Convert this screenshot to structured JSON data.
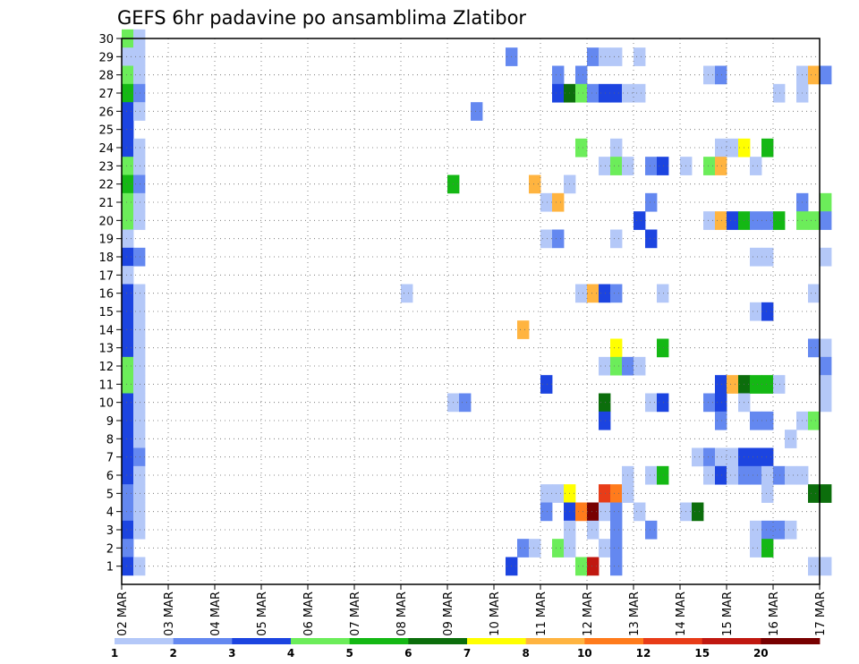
{
  "chart_data": {
    "type": "heatmap",
    "title": "GEFS 6hr padavine po ansamblima Zlatibor",
    "x_tick_labels": [
      "02 MAR",
      "03 MAR",
      "04 MAR",
      "05 MAR",
      "06 MAR",
      "07 MAR",
      "08 MAR",
      "09 MAR",
      "10 MAR",
      "11 MAR",
      "12 MAR",
      "13 MAR",
      "14 MAR",
      "15 MAR",
      "16 MAR",
      "17 MAR"
    ],
    "x_range_days": [
      0,
      15
    ],
    "x_step_hours": 6,
    "y_tick_labels": [
      "1",
      "2",
      "3",
      "4",
      "5",
      "6",
      "7",
      "8",
      "9",
      "10",
      "11",
      "12",
      "13",
      "14",
      "15",
      "16",
      "17",
      "18",
      "19",
      "20",
      "21",
      "22",
      "23",
      "24",
      "25",
      "26",
      "27",
      "28",
      "29",
      "30"
    ],
    "y_range": [
      0,
      30
    ],
    "grid": "dotted",
    "color_scale": {
      "labels": [
        "1",
        "2",
        "3",
        "4",
        "5",
        "6",
        "7",
        "8",
        "10",
        "12",
        "15",
        "20"
      ],
      "colors": [
        "#b4c8f8",
        "#6488f0",
        "#1c44e0",
        "#6ced5a",
        "#14b814",
        "#0c6e0c",
        "#ffff00",
        "#ffb440",
        "#ff7b1c",
        "#e83c18",
        "#c01810",
        "#780000"
      ]
    },
    "cells": [
      [
        0,
        30,
        4
      ],
      [
        0,
        29,
        1
      ],
      [
        0,
        28,
        4
      ],
      [
        0,
        27,
        5
      ],
      [
        0,
        26,
        3
      ],
      [
        0,
        25,
        3
      ],
      [
        0,
        24,
        3
      ],
      [
        0,
        23,
        4
      ],
      [
        0,
        22,
        5
      ],
      [
        0,
        21,
        4
      ],
      [
        0,
        20,
        4
      ],
      [
        0,
        19,
        1
      ],
      [
        0,
        18,
        3
      ],
      [
        0,
        17,
        1
      ],
      [
        0,
        16,
        3
      ],
      [
        0,
        15,
        3
      ],
      [
        0,
        14,
        3
      ],
      [
        0,
        13,
        3
      ],
      [
        0,
        12,
        4
      ],
      [
        0,
        11,
        4
      ],
      [
        0,
        10,
        3
      ],
      [
        0,
        9,
        3
      ],
      [
        0,
        8,
        3
      ],
      [
        0,
        7,
        3
      ],
      [
        0,
        6,
        3
      ],
      [
        0,
        5,
        2
      ],
      [
        0,
        4,
        2
      ],
      [
        0,
        3,
        3
      ],
      [
        0,
        2,
        2
      ],
      [
        0,
        1,
        3
      ],
      [
        1,
        30,
        1
      ],
      [
        1,
        29,
        1
      ],
      [
        1,
        28,
        1
      ],
      [
        1,
        27,
        2
      ],
      [
        1,
        26,
        1
      ],
      [
        1,
        24,
        1
      ],
      [
        1,
        23,
        1
      ],
      [
        1,
        22,
        2
      ],
      [
        1,
        21,
        1
      ],
      [
        1,
        20,
        1
      ],
      [
        1,
        18,
        2
      ],
      [
        1,
        16,
        1
      ],
      [
        1,
        15,
        1
      ],
      [
        1,
        14,
        1
      ],
      [
        1,
        13,
        1
      ],
      [
        1,
        12,
        1
      ],
      [
        1,
        11,
        1
      ],
      [
        1,
        10,
        1
      ],
      [
        1,
        9,
        1
      ],
      [
        1,
        8,
        1
      ],
      [
        1,
        7,
        2
      ],
      [
        1,
        6,
        1
      ],
      [
        1,
        5,
        1
      ],
      [
        1,
        4,
        1
      ],
      [
        1,
        3,
        1
      ],
      [
        1,
        1,
        1
      ],
      [
        24,
        16,
        1
      ],
      [
        28,
        22,
        5
      ],
      [
        28,
        10,
        1
      ],
      [
        29,
        10,
        2
      ],
      [
        30,
        26,
        2
      ],
      [
        33,
        29,
        2
      ],
      [
        33,
        1,
        3
      ],
      [
        34,
        2,
        2
      ],
      [
        34,
        14,
        8
      ],
      [
        35,
        22,
        8
      ],
      [
        35,
        2,
        1
      ],
      [
        36,
        21,
        1
      ],
      [
        36,
        19,
        1
      ],
      [
        36,
        11,
        3
      ],
      [
        36,
        5,
        1
      ],
      [
        36,
        4,
        2
      ],
      [
        37,
        28,
        2
      ],
      [
        37,
        27,
        3
      ],
      [
        37,
        21,
        8
      ],
      [
        37,
        19,
        2
      ],
      [
        37,
        5,
        1
      ],
      [
        37,
        2,
        4
      ],
      [
        38,
        27,
        6
      ],
      [
        38,
        22,
        1
      ],
      [
        38,
        5,
        7
      ],
      [
        38,
        4,
        3
      ],
      [
        38,
        3,
        1
      ],
      [
        38,
        2,
        1
      ],
      [
        39,
        28,
        2
      ],
      [
        39,
        27,
        4
      ],
      [
        39,
        24,
        4
      ],
      [
        39,
        16,
        1
      ],
      [
        39,
        4,
        9
      ],
      [
        39,
        1,
        4
      ],
      [
        40,
        29,
        2
      ],
      [
        40,
        27,
        2
      ],
      [
        40,
        16,
        8
      ],
      [
        40,
        4,
        12
      ],
      [
        40,
        3,
        1
      ],
      [
        40,
        1,
        11
      ],
      [
        41,
        29,
        1
      ],
      [
        41,
        27,
        3
      ],
      [
        41,
        23,
        1
      ],
      [
        41,
        16,
        3
      ],
      [
        41,
        12,
        1
      ],
      [
        41,
        10,
        6
      ],
      [
        41,
        9,
        3
      ],
      [
        41,
        5,
        10
      ],
      [
        41,
        4,
        1
      ],
      [
        41,
        2,
        1
      ],
      [
        42,
        29,
        1
      ],
      [
        42,
        27,
        3
      ],
      [
        42,
        24,
        1
      ],
      [
        42,
        23,
        4
      ],
      [
        42,
        19,
        1
      ],
      [
        42,
        16,
        2
      ],
      [
        42,
        13,
        7
      ],
      [
        42,
        12,
        4
      ],
      [
        42,
        5,
        9
      ],
      [
        42,
        4,
        2
      ],
      [
        42,
        3,
        2
      ],
      [
        42,
        2,
        2
      ],
      [
        42,
        1,
        2
      ],
      [
        43,
        27,
        1
      ],
      [
        43,
        23,
        1
      ],
      [
        43,
        12,
        2
      ],
      [
        43,
        6,
        1
      ],
      [
        43,
        5,
        1
      ],
      [
        44,
        29,
        1
      ],
      [
        44,
        27,
        1
      ],
      [
        44,
        20,
        3
      ],
      [
        44,
        12,
        1
      ],
      [
        44,
        4,
        1
      ],
      [
        45,
        23,
        2
      ],
      [
        45,
        21,
        2
      ],
      [
        45,
        19,
        3
      ],
      [
        45,
        10,
        1
      ],
      [
        45,
        6,
        1
      ],
      [
        45,
        3,
        2
      ],
      [
        46,
        23,
        3
      ],
      [
        46,
        16,
        1
      ],
      [
        46,
        13,
        5
      ],
      [
        46,
        10,
        3
      ],
      [
        46,
        6,
        5
      ],
      [
        48,
        23,
        1
      ],
      [
        48,
        4,
        1
      ],
      [
        49,
        7,
        1
      ],
      [
        49,
        4,
        6
      ],
      [
        50,
        28,
        1
      ],
      [
        50,
        23,
        4
      ],
      [
        50,
        20,
        1
      ],
      [
        50,
        10,
        2
      ],
      [
        50,
        7,
        2
      ],
      [
        50,
        6,
        1
      ],
      [
        51,
        28,
        2
      ],
      [
        51,
        24,
        1
      ],
      [
        51,
        23,
        8
      ],
      [
        51,
        20,
        8
      ],
      [
        51,
        11,
        3
      ],
      [
        51,
        10,
        3
      ],
      [
        51,
        9,
        2
      ],
      [
        51,
        7,
        1
      ],
      [
        51,
        6,
        3
      ],
      [
        52,
        24,
        1
      ],
      [
        52,
        20,
        3
      ],
      [
        52,
        11,
        8
      ],
      [
        52,
        7,
        1
      ],
      [
        52,
        6,
        1
      ],
      [
        53,
        24,
        7
      ],
      [
        53,
        20,
        5
      ],
      [
        53,
        11,
        6
      ],
      [
        53,
        10,
        1
      ],
      [
        53,
        7,
        3
      ],
      [
        53,
        6,
        2
      ],
      [
        54,
        23,
        1
      ],
      [
        54,
        20,
        2
      ],
      [
        54,
        18,
        1
      ],
      [
        54,
        15,
        1
      ],
      [
        54,
        11,
        5
      ],
      [
        54,
        9,
        2
      ],
      [
        54,
        7,
        3
      ],
      [
        54,
        6,
        2
      ],
      [
        54,
        3,
        1
      ],
      [
        54,
        2,
        1
      ],
      [
        55,
        24,
        5
      ],
      [
        55,
        20,
        2
      ],
      [
        55,
        18,
        1
      ],
      [
        55,
        15,
        3
      ],
      [
        55,
        11,
        5
      ],
      [
        55,
        9,
        2
      ],
      [
        55,
        7,
        3
      ],
      [
        55,
        6,
        1
      ],
      [
        55,
        5,
        1
      ],
      [
        55,
        3,
        2
      ],
      [
        55,
        2,
        5
      ],
      [
        56,
        27,
        1
      ],
      [
        56,
        20,
        5
      ],
      [
        56,
        11,
        1
      ],
      [
        56,
        6,
        2
      ],
      [
        56,
        3,
        2
      ],
      [
        57,
        8,
        1
      ],
      [
        57,
        6,
        1
      ],
      [
        57,
        3,
        1
      ],
      [
        58,
        28,
        1
      ],
      [
        58,
        27,
        1
      ],
      [
        58,
        21,
        2
      ],
      [
        58,
        20,
        4
      ],
      [
        58,
        9,
        1
      ],
      [
        58,
        6,
        1
      ],
      [
        59,
        28,
        8
      ],
      [
        59,
        20,
        4
      ],
      [
        59,
        16,
        1
      ],
      [
        59,
        13,
        2
      ],
      [
        59,
        9,
        4
      ],
      [
        59,
        5,
        6
      ],
      [
        59,
        1,
        1
      ],
      [
        60,
        28,
        2
      ],
      [
        60,
        21,
        4
      ],
      [
        60,
        20,
        2
      ],
      [
        60,
        18,
        1
      ],
      [
        60,
        13,
        1
      ],
      [
        60,
        12,
        2
      ],
      [
        60,
        11,
        1
      ],
      [
        60,
        10,
        1
      ],
      [
        60,
        5,
        6
      ],
      [
        60,
        1,
        1
      ]
    ]
  }
}
